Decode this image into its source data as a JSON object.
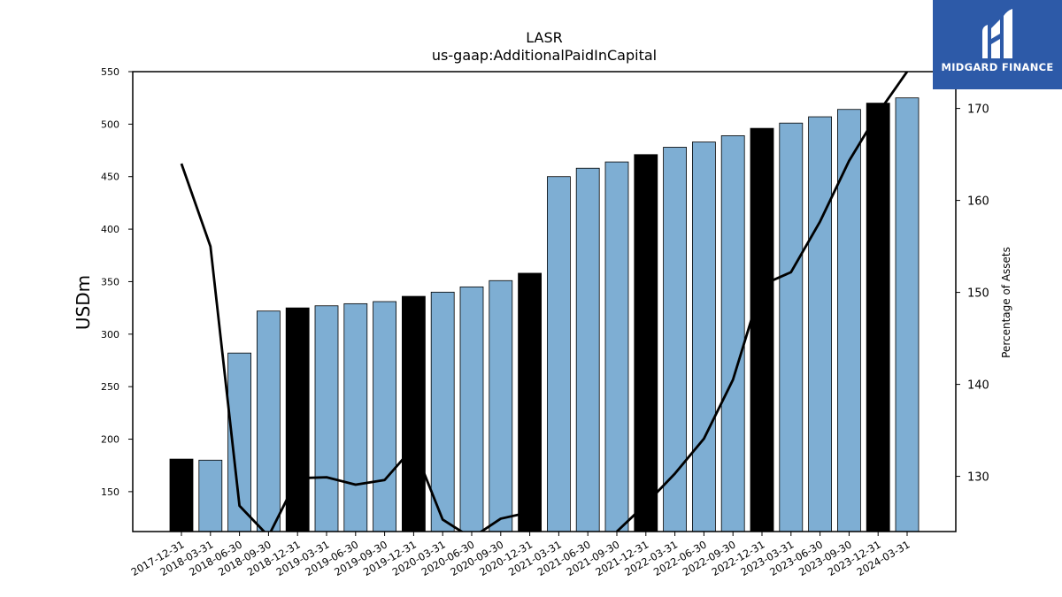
{
  "chart_data": {
    "type": "bar",
    "title": "LASR",
    "subtitle": "us-gaap:AdditionalPaidInCapital",
    "ylabel": "USDm",
    "y2label": "Percentage of Assets",
    "ylim": [
      112,
      550
    ],
    "y2lim": [
      124,
      174
    ],
    "yticks": [
      150,
      200,
      250,
      300,
      350,
      400,
      450,
      500,
      550
    ],
    "y2ticks": [
      130,
      140,
      150,
      160,
      170
    ],
    "categories": [
      "2017-12-31",
      "2018-03-31",
      "2018-06-30",
      "2018-09-30",
      "2018-12-31",
      "2019-03-31",
      "2019-06-30",
      "2019-09-30",
      "2019-12-31",
      "2020-03-31",
      "2020-06-30",
      "2020-09-30",
      "2020-12-31",
      "2021-03-31",
      "2021-06-30",
      "2021-09-30",
      "2021-12-31",
      "2022-03-31",
      "2022-06-30",
      "2022-09-30",
      "2022-12-31",
      "2023-03-31",
      "2023-06-30",
      "2023-09-30",
      "2023-12-31",
      "2024-03-31"
    ],
    "series": [
      {
        "type": "bar",
        "axis": "left",
        "values": [
          181,
          180,
          282,
          322,
          325,
          327,
          329,
          331,
          336,
          340,
          345,
          351,
          358,
          450,
          458,
          464,
          471,
          478,
          483,
          489,
          496,
          501,
          507,
          514,
          520,
          525
        ],
        "year_end": [
          true,
          false,
          false,
          false,
          true,
          false,
          false,
          false,
          true,
          false,
          false,
          false,
          true,
          false,
          false,
          false,
          true,
          false,
          false,
          false,
          true,
          false,
          false,
          false,
          true,
          false
        ]
      },
      {
        "type": "line",
        "axis": "right",
        "values": [
          164.0,
          155.0,
          126.8,
          123.5,
          129.8,
          129.9,
          129.1,
          129.6,
          133.2,
          125.3,
          123.3,
          125.4,
          126.1,
          null,
          null,
          124.0,
          127.0,
          130.3,
          134.1,
          140.5,
          150.8,
          152.2,
          157.7,
          164.3,
          169.5,
          174.0
        ]
      }
    ],
    "colors": {
      "bar": "#7eaed3",
      "bar_year_end": "#000000",
      "line": "#000000"
    }
  },
  "logo": {
    "text": "MIDGARD FINANCE",
    "background": "#2d5aa8"
  }
}
